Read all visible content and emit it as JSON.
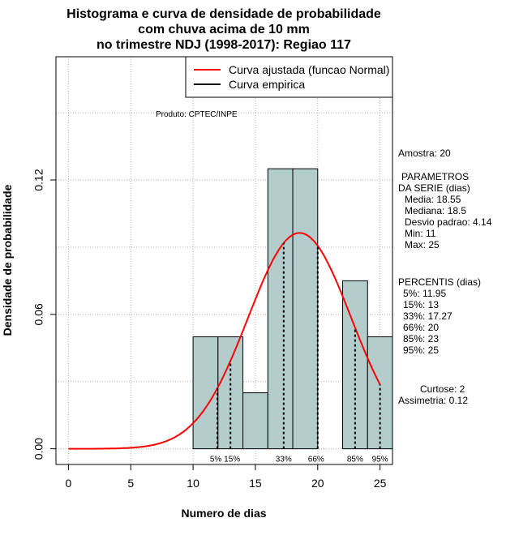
{
  "chart_data": {
    "type": "histogram",
    "title": [
      "Histograma e curva de densidade de probabilidade",
      "com chuva acima de 10 mm",
      "no trimestre NDJ (1998-2017): Regiao 117"
    ],
    "xlabel": "Numero de dias",
    "ylabel": "Densidade de probabilidade",
    "xlim": [
      -1,
      26
    ],
    "ylim": [
      -0.007,
      0.175
    ],
    "x_ticks": [
      0,
      5,
      10,
      15,
      20,
      25
    ],
    "y_ticks": [
      0.0,
      0.06,
      0.12
    ],
    "y_tick_labels": [
      "0.00",
      "0.06",
      "0.12"
    ],
    "grid": true,
    "bins": [
      {
        "start": 10,
        "end": 12,
        "density": 0.05
      },
      {
        "start": 12,
        "end": 14,
        "density": 0.05
      },
      {
        "start": 14,
        "end": 16,
        "density": 0.025
      },
      {
        "start": 16,
        "end": 18,
        "density": 0.125
      },
      {
        "start": 18,
        "end": 20,
        "density": 0.125
      },
      {
        "start": 20,
        "end": 22,
        "density": 0.0
      },
      {
        "start": 22,
        "end": 24,
        "density": 0.075
      },
      {
        "start": 24,
        "end": 26,
        "density": 0.05
      }
    ],
    "normal_curve": {
      "mean": 18.55,
      "sd": 4.14,
      "x_min": 0,
      "x_max": 25
    },
    "percentile_lines": [
      {
        "label": "5%",
        "x": 11.95
      },
      {
        "label": "15%",
        "x": 13
      },
      {
        "label": "33%",
        "x": 17.27
      },
      {
        "label": "66%",
        "x": 20
      },
      {
        "label": "85%",
        "x": 23
      },
      {
        "label": "95%",
        "x": 25
      }
    ],
    "legend": [
      {
        "label": "Curva ajustada (funcao Normal)",
        "color": "#ff0000"
      },
      {
        "label": "Curva empirica",
        "color": "#000000"
      }
    ],
    "legend_position": "top-right",
    "annotation": "Produto: CPTEC/INPE"
  },
  "stats_panel": {
    "sample": "Amostra: 20",
    "param_header_1": "PARAMETROS",
    "param_header_2": "DA SERIE (dias)",
    "params": [
      "Media: 18.55",
      "Mediana: 18.5",
      "Desvio padrao: 4.14",
      "Min: 11",
      "Max: 25"
    ],
    "perc_header": "PERCENTIS (dias)",
    "percentiles": [
      "5%: 11.95",
      "15%: 13",
      "33%: 17.27",
      "66%: 20",
      "85%: 23",
      "95%: 25"
    ],
    "kurtosis": "Curtose: 2",
    "skewness": "Assimetria: 0.12"
  },
  "colors": {
    "bar_fill": "#b3cccc",
    "curve": "#ff0000",
    "grid": "#b0b0b0"
  }
}
